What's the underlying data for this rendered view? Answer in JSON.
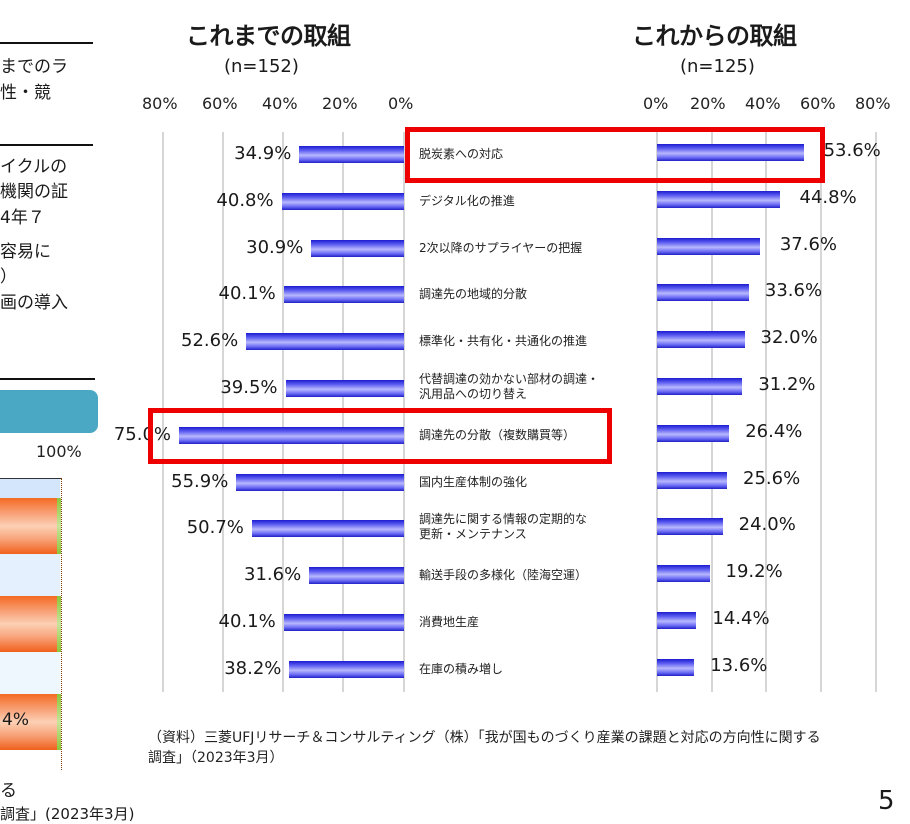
{
  "left_panel": {
    "text_lines_1": [
      "までのラ",
      "性・競"
    ],
    "text_lines_2": [
      "イクルの",
      "機関の証",
      "4年７",
      "",
      "容易に",
      "）",
      "画の導入"
    ],
    "tick_100": "100%",
    "bar_label": "4%",
    "footnote_1": "る",
    "footnote_2": "調査」(2023年3月)",
    "colors": {
      "header_band": "#4ba8c4",
      "bar_orange": "#f46a22",
      "bar_green": "#8cc63a"
    }
  },
  "page_number": "5",
  "source": {
    "line1": "（資料）三菱UFJリサーチ＆コンサルティング（株）「我が国ものづくり産業の課題と対応の方向性に関する",
    "line2": "調査」（2023年3月）"
  },
  "categories": [
    "脱炭素への対応",
    "デジタル化の推進",
    "2次以降のサプライヤーの把握",
    "調達先の地域的分散",
    "標準化・共有化・共通化の推進",
    "代替調達の効かない部材の調達・\n汎用品への切り替え",
    "調達先の分散（複数購買等）",
    "国内生産体制の強化",
    "調達先に関する情報の定期的な\n更新・メンテナンス",
    "輸送手段の多様化（陸海空運）",
    "消費地生産",
    "在庫の積み増し"
  ],
  "chart_data": [
    {
      "type": "bar",
      "orientation": "horizontal",
      "direction": "reversed",
      "title": "これまでの取組",
      "subtitle": "(n=152)",
      "xlabel": "",
      "ylabel": "",
      "xlim": [
        0,
        80
      ],
      "ticks": [
        "80%",
        "60%",
        "40%",
        "20%",
        "0%"
      ],
      "grid": true,
      "categories": [
        "脱炭素への対応",
        "デジタル化の推進",
        "2次以降のサプライヤーの把握",
        "調達先の地域的分散",
        "標準化・共有化・共通化の推進",
        "代替調達の効かない部材の調達・汎用品への切り替え",
        "調達先の分散（複数購買等）",
        "国内生産体制の強化",
        "調達先に関する情報の定期的な更新・メンテナンス",
        "輸送手段の多様化（陸海空運）",
        "消費地生産",
        "在庫の積み増し"
      ],
      "values": [
        34.9,
        40.8,
        30.9,
        40.1,
        52.6,
        39.5,
        75.0,
        55.9,
        50.7,
        31.6,
        40.1,
        38.2
      ],
      "labels": [
        "34.9%",
        "40.8%",
        "30.9%",
        "40.1%",
        "52.6%",
        "39.5%",
        "75.0%",
        "55.9%",
        "50.7%",
        "31.6%",
        "40.1%",
        "38.2%"
      ],
      "highlighted": [
        "調達先の分散（複数購買等）"
      ],
      "bar_color": "#2020d0"
    },
    {
      "type": "bar",
      "orientation": "horizontal",
      "title": "これからの取組",
      "subtitle": "(n=125)",
      "xlabel": "",
      "ylabel": "",
      "xlim": [
        0,
        80
      ],
      "ticks": [
        "0%",
        "20%",
        "40%",
        "60%",
        "80%"
      ],
      "grid": true,
      "categories": [
        "脱炭素への対応",
        "デジタル化の推進",
        "2次以降のサプライヤーの把握",
        "調達先の地域的分散",
        "標準化・共有化・共通化の推進",
        "代替調達の効かない部材の調達・汎用品への切り替え",
        "調達先の分散（複数購買等）",
        "国内生産体制の強化",
        "調達先に関する情報の定期的な更新・メンテナンス",
        "輸送手段の多様化（陸海空運）",
        "消費地生産",
        "在庫の積み増し"
      ],
      "values": [
        53.6,
        44.8,
        37.6,
        33.6,
        32.0,
        31.2,
        26.4,
        25.6,
        24.0,
        19.2,
        14.4,
        13.6
      ],
      "labels": [
        "53.6%",
        "44.8%",
        "37.6%",
        "33.6%",
        "32.0%",
        "31.2%",
        "26.4%",
        "25.6%",
        "24.0%",
        "19.2%",
        "14.4%",
        "13.6%"
      ],
      "highlighted": [
        "脱炭素への対応"
      ],
      "bar_color": "#2020d0"
    }
  ]
}
